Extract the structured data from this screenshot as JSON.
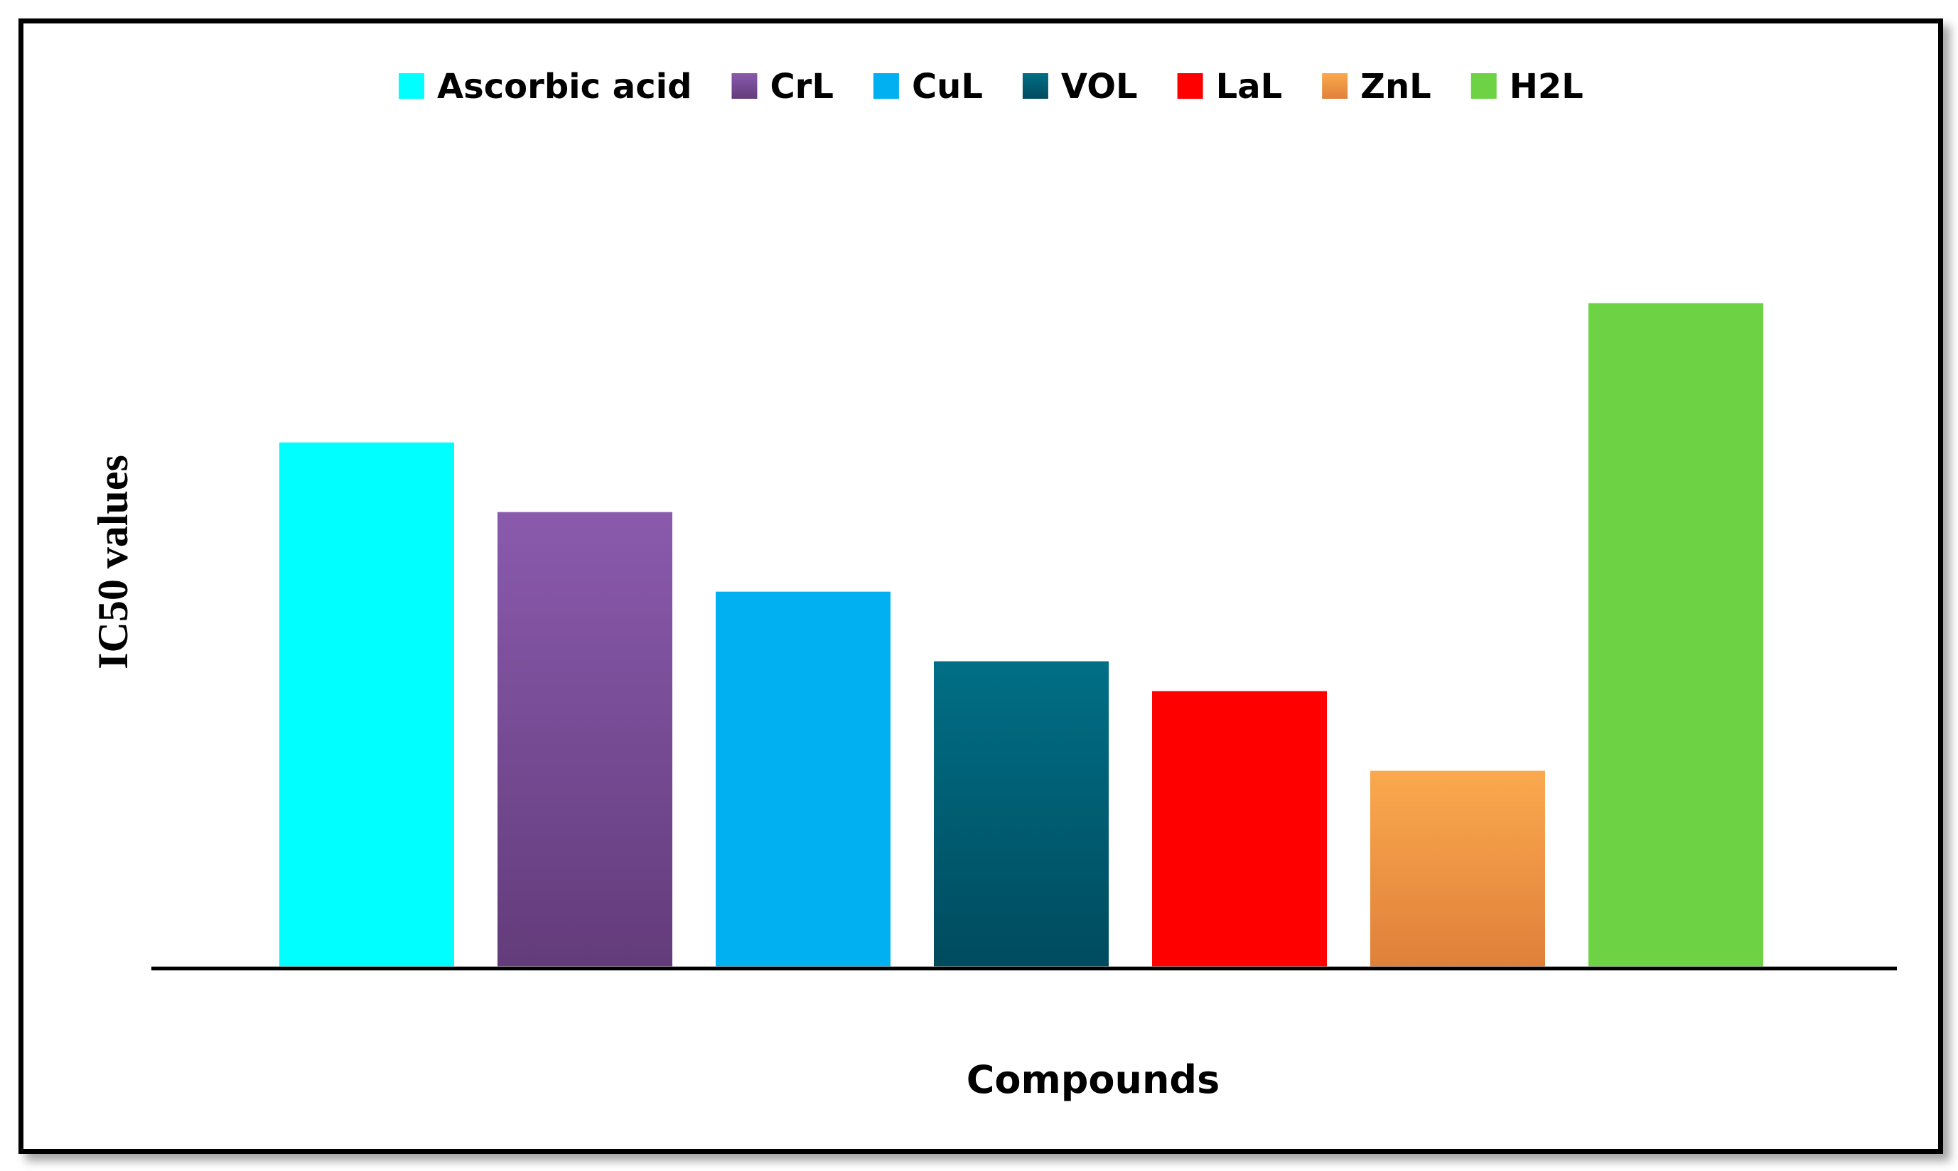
{
  "chart_data": {
    "type": "bar",
    "title": "",
    "xlabel": "Compounds",
    "ylabel": "IC50 values",
    "categories": [
      "Ascorbic acid",
      "CrL",
      "CuL",
      "VOL",
      "LaL",
      "ZnL",
      "H2L"
    ],
    "values": [
      7.9,
      6.85,
      5.65,
      4.6,
      4.15,
      2.95,
      10.0
    ],
    "ylim": [
      0,
      12
    ],
    "grid": false,
    "show_y_ticks": false,
    "legend": {
      "position": "top",
      "entries": [
        "Ascorbic acid",
        "CrL",
        "CuL",
        "VOL",
        "LaL",
        "ZnL",
        "H2L"
      ]
    },
    "colors": {
      "Ascorbic acid": [
        "#00FFFF",
        "#00FFFF"
      ],
      "CrL": [
        "#8A5AAD",
        "#633C7B"
      ],
      "CuL": [
        "#00B0F0",
        "#00B0F0"
      ],
      "VOL": [
        "#006F86",
        "#004B5E"
      ],
      "LaL": [
        "#FF0000",
        "#FF0000"
      ],
      "ZnL": [
        "#FAA94E",
        "#E0803A"
      ],
      "H2L": [
        "#6DD344",
        "#6DD344"
      ]
    }
  }
}
